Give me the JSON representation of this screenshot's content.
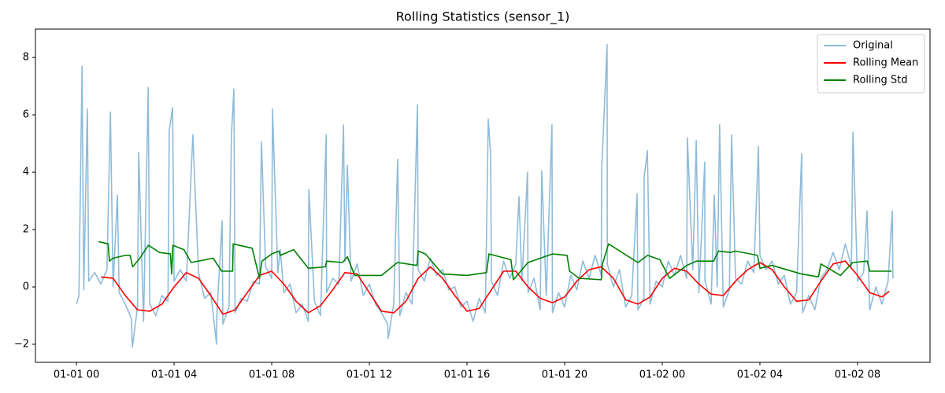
{
  "chart_data": {
    "type": "line",
    "title": "Rolling Statistics (sensor_1)",
    "xlim": [
      -1.68,
      34.97
    ],
    "ylim": [
      -2.63,
      8.99
    ],
    "xticks": [
      {
        "value": 0,
        "label": "01-01 00"
      },
      {
        "value": 4,
        "label": "01-01 04"
      },
      {
        "value": 8,
        "label": "01-01 08"
      },
      {
        "value": 12,
        "label": "01-01 12"
      },
      {
        "value": 16,
        "label": "01-01 16"
      },
      {
        "value": 20,
        "label": "01-01 20"
      },
      {
        "value": 24,
        "label": "01-02 00"
      },
      {
        "value": 28,
        "label": "01-02 04"
      },
      {
        "value": 32,
        "label": "01-02 08"
      }
    ],
    "yticks": [
      {
        "value": -2,
        "label": "−2"
      },
      0,
      2,
      4,
      6,
      8
    ],
    "legend": "upper right",
    "series": [
      {
        "name": "Original",
        "color": "#8fbbd9",
        "x": [
          0,
          0.1,
          0.23,
          0.3,
          0.42,
          0.45,
          0.5,
          0.75,
          1.0,
          1.25,
          1.39,
          1.5,
          1.68,
          1.75,
          2.0,
          2.25,
          2.29,
          2.5,
          2.55,
          2.75,
          2.94,
          3.0,
          3.25,
          3.5,
          3.75,
          3.8,
          3.94,
          4.0,
          4.25,
          4.5,
          4.77,
          5.0,
          5.25,
          5.5,
          5.74,
          5.75,
          5.97,
          6.0,
          6.25,
          6.35,
          6.45,
          6.5,
          6.75,
          7.0,
          7.25,
          7.5,
          7.58,
          7.75,
          8.0,
          8.03,
          8.25,
          8.35,
          8.5,
          8.75,
          9.0,
          9.25,
          9.5,
          9.52,
          9.75,
          10.0,
          10.23,
          10.25,
          10.5,
          10.75,
          10.94,
          11.0,
          11.1,
          11.25,
          11.5,
          11.75,
          12.0,
          12.25,
          12.5,
          12.75,
          12.77,
          13.0,
          13.16,
          13.25,
          13.5,
          13.75,
          13.97,
          14.0,
          14.25,
          14.5,
          14.75,
          15.0,
          15.25,
          15.5,
          15.75,
          16.0,
          16.25,
          16.5,
          16.75,
          16.87,
          16.97,
          17.0,
          17.25,
          17.5,
          17.75,
          18.0,
          18.13,
          18.25,
          18.48,
          18.5,
          18.75,
          19.0,
          19.06,
          19.25,
          19.48,
          19.5,
          19.75,
          20.0,
          20.25,
          20.5,
          20.75,
          21.0,
          21.25,
          21.5,
          21.52,
          21.74,
          21.75,
          22.0,
          22.25,
          22.5,
          22.75,
          22.97,
          23.0,
          23.25,
          23.26,
          23.39,
          23.5,
          23.75,
          24.0,
          24.25,
          24.5,
          24.75,
          25.0,
          25.03,
          25.25,
          25.39,
          25.5,
          25.74,
          25.75,
          26.0,
          26.13,
          26.25,
          26.35,
          26.5,
          26.75,
          26.84,
          27.0,
          27.25,
          27.5,
          27.75,
          27.94,
          28.0,
          28.25,
          28.5,
          28.75,
          29.0,
          29.25,
          29.5,
          29.71,
          29.75,
          30.0,
          30.25,
          30.5,
          30.75,
          31.0,
          31.25,
          31.5,
          31.75,
          31.81,
          32.0,
          32.25,
          32.39,
          32.5,
          32.75,
          33.0,
          33.25,
          33.42,
          33.45
        ],
        "values": [
          -0.6,
          -0.3,
          7.7,
          -0.1,
          5.1,
          6.2,
          0.2,
          0.5,
          0.1,
          0.6,
          6.1,
          0.0,
          3.2,
          -0.2,
          -0.6,
          -1.1,
          -2.1,
          -0.7,
          4.7,
          -1.2,
          6.95,
          -0.6,
          -1.0,
          -0.3,
          -0.5,
          5.45,
          6.25,
          0.2,
          0.6,
          0.2,
          5.3,
          0.5,
          -0.4,
          -0.2,
          -2.0,
          -1.0,
          2.3,
          -1.3,
          -0.7,
          5.3,
          6.9,
          -0.9,
          -0.4,
          -0.5,
          0.2,
          0.1,
          5.05,
          0.7,
          0.3,
          6.2,
          0.5,
          1.3,
          -0.2,
          0.1,
          -0.9,
          -0.6,
          -1.2,
          3.4,
          -0.5,
          -1.0,
          5.3,
          -0.2,
          0.3,
          0.1,
          5.65,
          0.9,
          4.25,
          0.2,
          0.8,
          -0.3,
          0.1,
          -0.6,
          -0.9,
          -1.3,
          -1.8,
          -0.6,
          4.45,
          -1.0,
          -0.2,
          -0.6,
          6.35,
          0.6,
          0.2,
          1.0,
          0.4,
          0.6,
          -0.1,
          0.0,
          -0.7,
          -0.5,
          -1.2,
          -0.4,
          -0.9,
          5.85,
          4.6,
          0.2,
          -0.3,
          0.9,
          0.3,
          0.8,
          3.15,
          0.2,
          4.0,
          -0.2,
          0.3,
          -0.8,
          4.05,
          -0.3,
          5.65,
          -0.9,
          -0.2,
          -0.7,
          0.4,
          -0.1,
          0.9,
          0.3,
          1.1,
          0.4,
          4.1,
          8.45,
          0.8,
          0.0,
          0.6,
          -0.7,
          -0.3,
          3.25,
          -0.8,
          -0.4,
          3.85,
          4.75,
          -0.6,
          0.2,
          0.0,
          0.9,
          0.4,
          1.1,
          0.3,
          5.2,
          0.6,
          5.1,
          -0.2,
          4.35,
          0.2,
          -0.6,
          3.2,
          0.0,
          5.65,
          -0.7,
          -0.1,
          5.3,
          0.3,
          0.1,
          0.9,
          0.5,
          4.9,
          1.1,
          0.6,
          0.9,
          0.1,
          0.4,
          -0.6,
          -0.2,
          4.65,
          -0.9,
          -0.3,
          -0.8,
          0.3,
          0.6,
          1.2,
          0.6,
          1.5,
          0.7,
          5.4,
          0.2,
          0.5,
          2.65,
          -0.8,
          0.0,
          -0.6,
          0.2,
          2.65,
          0.3
        ]
      },
      {
        "name": "Rolling Mean",
        "color": "#ff0000",
        "x": [
          1.0,
          1.5,
          2.0,
          2.5,
          3.0,
          3.5,
          4.0,
          4.5,
          5.0,
          5.5,
          6.0,
          6.5,
          7.0,
          7.5,
          8.0,
          8.5,
          9.0,
          9.5,
          10.0,
          10.5,
          11.0,
          11.5,
          12.0,
          12.5,
          13.0,
          13.5,
          14.0,
          14.5,
          15.0,
          15.5,
          16.0,
          16.5,
          17.0,
          17.5,
          18.0,
          18.5,
          19.0,
          19.5,
          20.0,
          20.5,
          21.0,
          21.5,
          22.0,
          22.5,
          23.0,
          23.5,
          24.0,
          24.5,
          25.0,
          25.5,
          26.0,
          26.5,
          27.0,
          27.5,
          28.0,
          28.5,
          29.0,
          29.5,
          30.0,
          30.5,
          31.0,
          31.5,
          32.0,
          32.5,
          33.0,
          33.3
        ],
        "values": [
          0.35,
          0.3,
          -0.3,
          -0.8,
          -0.85,
          -0.6,
          0.0,
          0.5,
          0.3,
          -0.3,
          -0.95,
          -0.8,
          -0.2,
          0.4,
          0.55,
          0.1,
          -0.5,
          -0.9,
          -0.65,
          -0.1,
          0.5,
          0.45,
          -0.2,
          -0.85,
          -0.9,
          -0.5,
          0.3,
          0.7,
          0.3,
          -0.3,
          -0.85,
          -0.75,
          -0.1,
          0.55,
          0.55,
          0.0,
          -0.4,
          -0.55,
          -0.35,
          0.2,
          0.6,
          0.7,
          0.3,
          -0.45,
          -0.6,
          -0.35,
          0.3,
          0.65,
          0.55,
          0.1,
          -0.25,
          -0.3,
          0.2,
          0.6,
          0.85,
          0.6,
          0.0,
          -0.5,
          -0.45,
          0.2,
          0.8,
          0.9,
          0.4,
          -0.2,
          -0.35,
          -0.15
        ]
      },
      {
        "name": "Rolling Std",
        "color": "#008000",
        "x": [
          0.9,
          1.3,
          1.35,
          1.5,
          2.0,
          2.2,
          2.3,
          2.55,
          2.95,
          3.4,
          3.85,
          3.9,
          3.95,
          4.4,
          4.7,
          5.6,
          5.95,
          6.4,
          6.42,
          7.2,
          7.5,
          7.6,
          8.0,
          8.3,
          8.35,
          8.9,
          9.5,
          10.2,
          10.25,
          10.9,
          11.1,
          11.4,
          12.5,
          13.15,
          13.95,
          14.0,
          14.3,
          15.0,
          16.0,
          16.8,
          16.9,
          17.8,
          17.9,
          18.2,
          18.5,
          19.0,
          19.5,
          20.1,
          20.2,
          20.6,
          21.5,
          21.55,
          21.8,
          23.0,
          23.4,
          23.9,
          24.3,
          25.0,
          25.4,
          26.1,
          26.3,
          26.8,
          27.0,
          27.9,
          28.0,
          28.5,
          29.7,
          30.4,
          30.5,
          31.3,
          31.8,
          32.4,
          32.5,
          33.1,
          33.4
        ],
        "values": [
          1.58,
          1.5,
          0.9,
          1.0,
          1.1,
          1.1,
          0.7,
          0.95,
          1.45,
          1.2,
          1.15,
          0.45,
          1.45,
          1.3,
          0.85,
          1.0,
          0.55,
          0.55,
          1.5,
          1.35,
          0.3,
          0.9,
          1.15,
          1.25,
          1.1,
          1.3,
          0.65,
          0.7,
          0.9,
          0.85,
          1.05,
          0.4,
          0.4,
          0.85,
          0.75,
          1.25,
          1.15,
          0.45,
          0.4,
          0.5,
          1.15,
          0.95,
          0.25,
          0.55,
          0.85,
          1.0,
          1.15,
          1.1,
          0.55,
          0.3,
          0.25,
          0.8,
          1.5,
          0.85,
          1.1,
          0.95,
          0.3,
          0.75,
          0.9,
          0.9,
          1.25,
          1.2,
          1.25,
          1.1,
          0.65,
          0.75,
          0.45,
          0.35,
          0.8,
          0.4,
          0.85,
          0.9,
          0.55,
          0.55,
          0.55
        ]
      }
    ]
  }
}
